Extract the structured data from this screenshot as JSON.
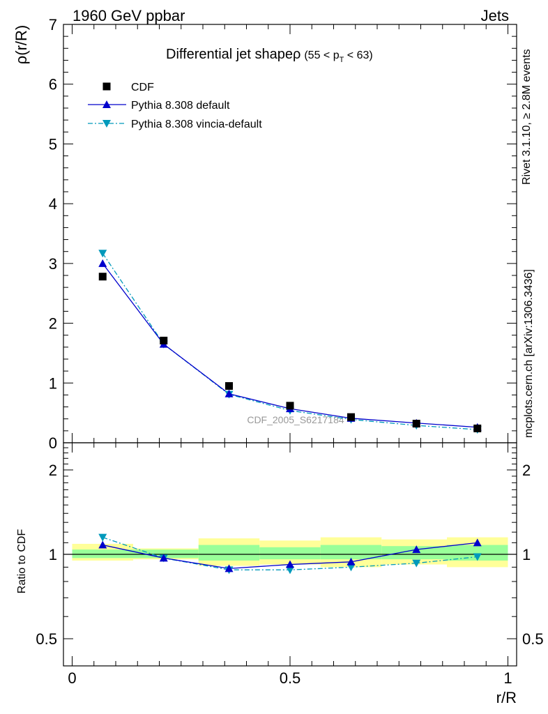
{
  "header": {
    "left": "1960 GeV ppbar",
    "right": "Jets"
  },
  "title": {
    "main": "Differential jet shapeρ",
    "cond_open": "(55 < p",
    "cond_sub": "T",
    "cond_close": " < 63)"
  },
  "side_labels": {
    "rivet": "Rivet 3.1.10, ≥ 2.8M events",
    "mcplots": "mcplots.cern.ch [arXiv:1306.3436]"
  },
  "watermark": "CDF_2005_S6217184",
  "axes": {
    "main_ylabel": "ρ(r/R)",
    "ratio_ylabel": "Ratio to CDF",
    "xlabel": "r/R",
    "main_ytick_labels": [
      "0",
      "1",
      "2",
      "3",
      "4",
      "5",
      "6",
      "7"
    ],
    "ratio_ytick_labels": [
      "0.5",
      "1",
      "2"
    ],
    "xtick_labels": [
      "0",
      "0.5",
      "1"
    ]
  },
  "legend": [
    {
      "label": "CDF",
      "marker": "square",
      "color": "#000000"
    },
    {
      "label": "Pythia 8.308 default",
      "marker": "triangle-up",
      "color": "#0000cc"
    },
    {
      "label": "Pythia 8.308 vincia-default",
      "marker": "triangle-down",
      "color": "#0099bb"
    }
  ],
  "colors": {
    "data": "#000000",
    "default": "#0000cc",
    "vincia": "#0099bb",
    "band_outer": "#ffff99",
    "band_inner": "#99ff99"
  },
  "chart_data": [
    {
      "type": "line",
      "panel": "main",
      "xlim": [
        -0.02,
        1.02
      ],
      "ylim": [
        0,
        7
      ],
      "x": [
        0.07,
        0.21,
        0.36,
        0.5,
        0.64,
        0.79,
        0.93
      ],
      "series": [
        {
          "name": "CDF",
          "values": [
            2.78,
            1.71,
            0.95,
            0.62,
            0.43,
            0.32,
            0.24
          ]
        },
        {
          "name": "Pythia 8.308 default",
          "values": [
            3.0,
            1.65,
            0.82,
            0.57,
            0.41,
            0.33,
            0.26
          ]
        },
        {
          "name": "Pythia 8.308 vincia-default",
          "values": [
            3.17,
            1.65,
            0.81,
            0.54,
            0.39,
            0.29,
            0.22
          ]
        }
      ]
    },
    {
      "type": "line",
      "panel": "ratio",
      "scale": "log",
      "xlim": [
        -0.02,
        1.02
      ],
      "ylim": [
        0.4,
        2.5
      ],
      "x": [
        0.07,
        0.21,
        0.36,
        0.5,
        0.64,
        0.79,
        0.93
      ],
      "bins": [
        [
          0.0,
          0.14
        ],
        [
          0.14,
          0.29
        ],
        [
          0.29,
          0.43
        ],
        [
          0.43,
          0.57
        ],
        [
          0.57,
          0.71
        ],
        [
          0.71,
          0.86
        ],
        [
          0.86,
          1.0
        ]
      ],
      "bands": {
        "outer": [
          [
            0.95,
            1.09
          ],
          [
            0.96,
            1.05
          ],
          [
            0.91,
            1.14
          ],
          [
            0.92,
            1.12
          ],
          [
            0.9,
            1.15
          ],
          [
            0.92,
            1.13
          ],
          [
            0.9,
            1.15
          ]
        ],
        "inner": [
          [
            0.97,
            1.04
          ],
          [
            0.97,
            1.04
          ],
          [
            0.95,
            1.08
          ],
          [
            0.96,
            1.06
          ],
          [
            0.96,
            1.08
          ],
          [
            0.96,
            1.07
          ],
          [
            0.95,
            1.08
          ]
        ]
      },
      "series": [
        {
          "name": "Pythia 8.308 default",
          "values": [
            1.08,
            0.97,
            0.89,
            0.92,
            0.94,
            1.04,
            1.1
          ]
        },
        {
          "name": "Pythia 8.308 vincia-default",
          "values": [
            1.15,
            0.97,
            0.88,
            0.88,
            0.9,
            0.93,
            0.98
          ]
        }
      ]
    }
  ]
}
